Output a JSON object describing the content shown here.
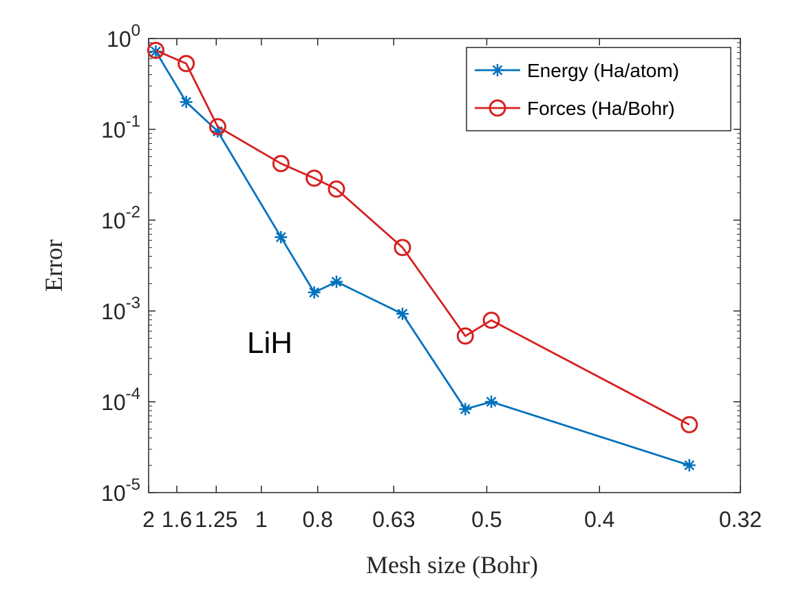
{
  "chart_data": {
    "type": "line",
    "title": "",
    "xlabel": "Mesh size (Bohr)",
    "ylabel": "Error",
    "x_scale": "reciprocal",
    "y_scale": "log",
    "xlim": [
      2,
      0.32
    ],
    "ylim": [
      1e-05,
      1
    ],
    "x_ticks": [
      2,
      1.6,
      1.25,
      1,
      0.8,
      0.63,
      0.5,
      0.4,
      0.32
    ],
    "x_tick_labels": [
      "2",
      "1.6",
      "1.25",
      "1",
      "0.8",
      "0.63",
      "0.5",
      "0.4",
      "0.32"
    ],
    "y_ticks": [
      1,
      0.1,
      0.01,
      0.001,
      0.0001,
      1e-05
    ],
    "y_tick_labels": [
      {
        "base": "10",
        "exp": "0"
      },
      {
        "base": "10",
        "exp": "-1"
      },
      {
        "base": "10",
        "exp": "-2"
      },
      {
        "base": "10",
        "exp": "-3"
      },
      {
        "base": "10",
        "exp": "-4"
      },
      {
        "base": "10",
        "exp": "-5"
      }
    ],
    "grid": false,
    "legend_position": "top-right",
    "annotation": "LiH",
    "series": [
      {
        "name": "Energy (Ha/atom)",
        "color": "#0072BD",
        "marker": "asterisk",
        "x": [
          1.88,
          1.5,
          1.24,
          0.92,
          0.81,
          0.75,
          0.615,
          0.525,
          0.495,
          0.345
        ],
        "y": [
          0.72,
          0.2,
          0.095,
          0.0065,
          0.0016,
          0.0021,
          0.00093,
          8.3e-05,
          0.0001,
          2e-05
        ]
      },
      {
        "name": "Forces (Ha/Bohr)",
        "color": "#D62020",
        "marker": "circle",
        "x": [
          1.88,
          1.5,
          1.24,
          0.92,
          0.81,
          0.75,
          0.615,
          0.525,
          0.495,
          0.345
        ],
        "y": [
          0.74,
          0.53,
          0.107,
          0.042,
          0.029,
          0.022,
          0.005,
          0.00053,
          0.00079,
          5.6e-05
        ]
      }
    ]
  }
}
